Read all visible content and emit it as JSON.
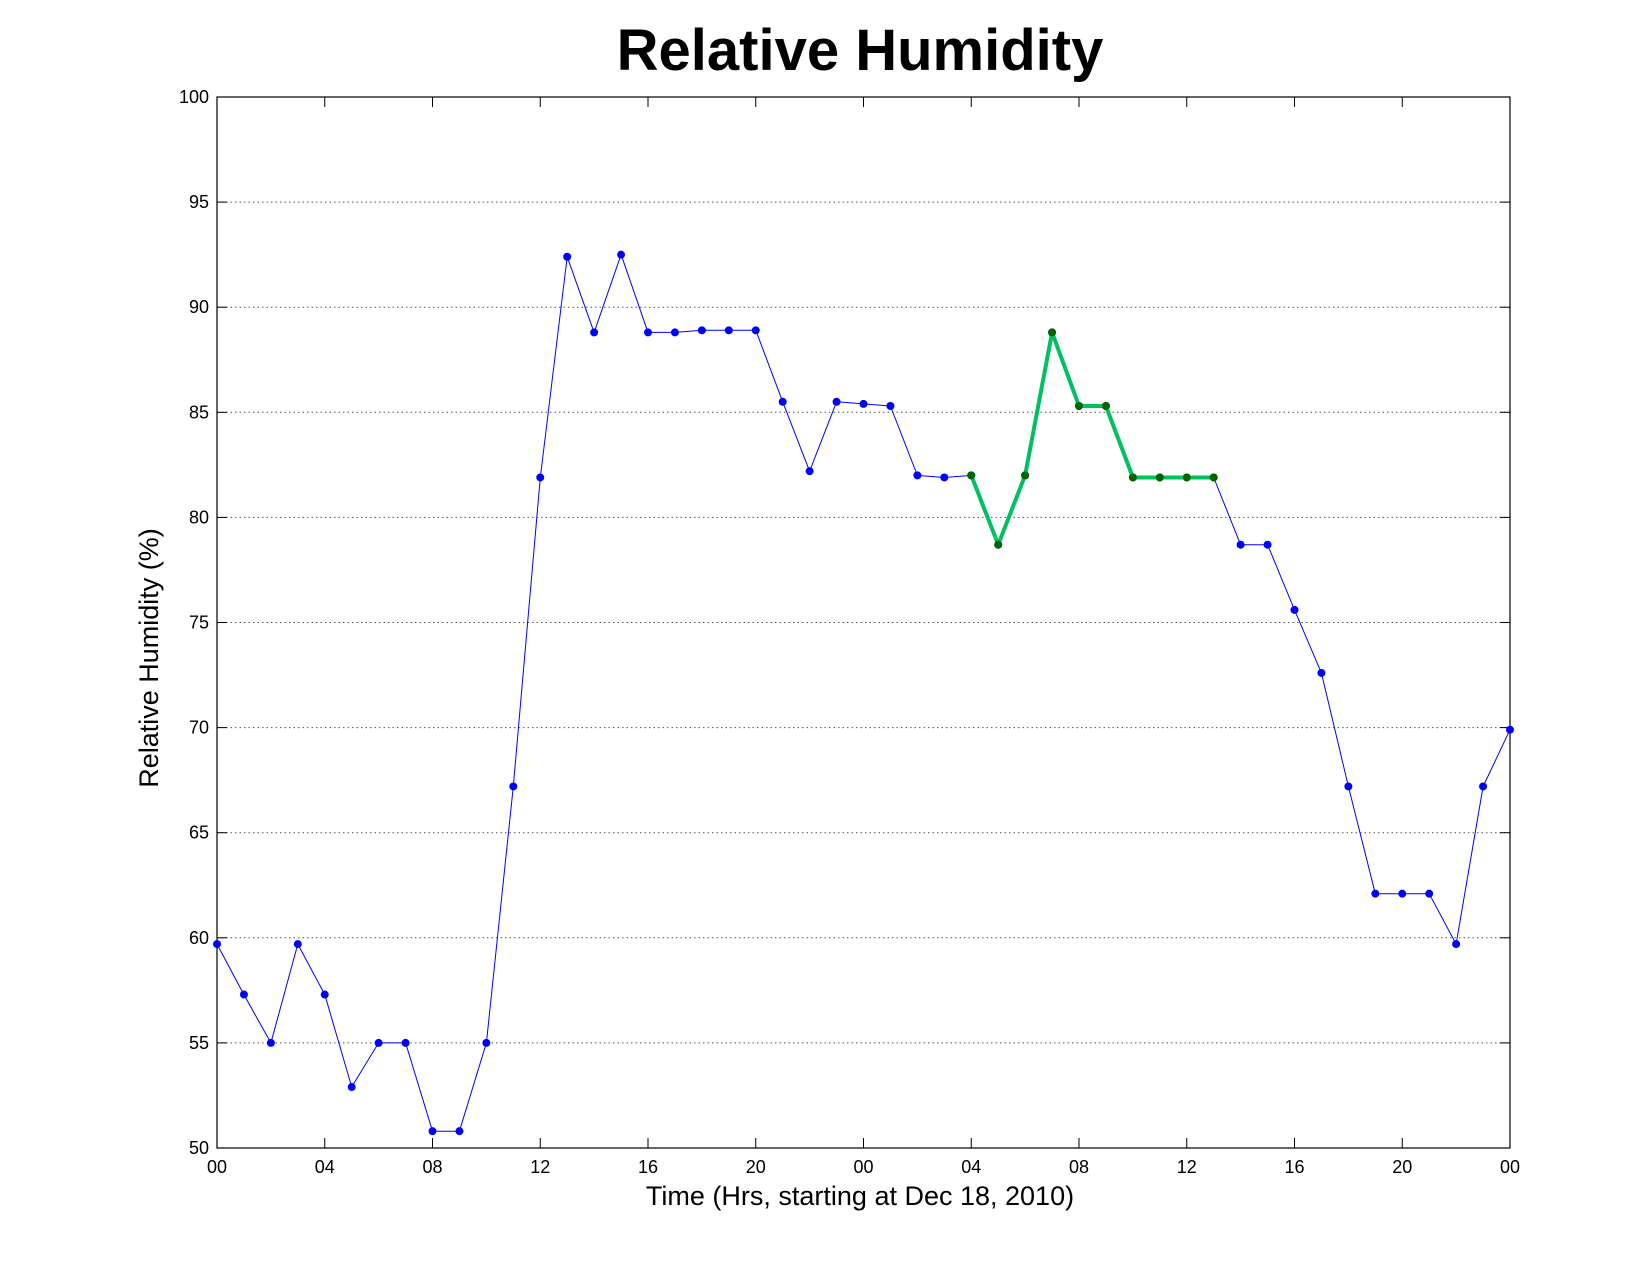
{
  "chart_data": {
    "type": "line",
    "title": "Relative Humidity",
    "xlabel": "Time (Hrs, starting at Dec 18, 2010)",
    "ylabel": "Relative Humidity (%)",
    "xlim": [
      0,
      48
    ],
    "ylim": [
      50,
      100
    ],
    "grid": "y-major-dotted",
    "x_ticks": [
      {
        "x": 0,
        "label": "00"
      },
      {
        "x": 4,
        "label": "04"
      },
      {
        "x": 8,
        "label": "08"
      },
      {
        "x": 12,
        "label": "12"
      },
      {
        "x": 16,
        "label": "16"
      },
      {
        "x": 20,
        "label": "20"
      },
      {
        "x": 24,
        "label": "00"
      },
      {
        "x": 28,
        "label": "04"
      },
      {
        "x": 32,
        "label": "08"
      },
      {
        "x": 36,
        "label": "12"
      },
      {
        "x": 40,
        "label": "16"
      },
      {
        "x": 44,
        "label": "20"
      },
      {
        "x": 48,
        "label": "00"
      }
    ],
    "y_ticks": [
      50,
      55,
      60,
      65,
      70,
      75,
      80,
      85,
      90,
      95,
      100
    ],
    "series": [
      {
        "color": "#0000ff",
        "marker_color": "#0000ff",
        "line_width": 1,
        "x": [
          0,
          1,
          2,
          3,
          4,
          5,
          6,
          7,
          8,
          9,
          10,
          11,
          12,
          13,
          14,
          15,
          16,
          17,
          18,
          19,
          20,
          21,
          22,
          23,
          24,
          25,
          26,
          27,
          28,
          29,
          30,
          31,
          32,
          33,
          34,
          35,
          36,
          37,
          38,
          39,
          40,
          41,
          42,
          43,
          44,
          45,
          46,
          47,
          48
        ],
        "y": [
          59.7,
          57.3,
          55.0,
          59.7,
          57.3,
          52.9,
          55.0,
          55.0,
          50.8,
          50.8,
          55.0,
          67.2,
          81.9,
          92.4,
          88.8,
          92.5,
          88.8,
          88.8,
          88.9,
          88.9,
          88.9,
          85.5,
          82.2,
          85.5,
          85.4,
          85.3,
          82.0,
          81.9,
          82.0,
          78.7,
          82.0,
          88.8,
          85.3,
          85.3,
          81.9,
          81.9,
          81.9,
          81.9,
          78.7,
          78.7,
          75.6,
          72.6,
          67.2,
          62.1,
          62.1,
          62.1,
          59.7,
          67.2,
          69.9
        ]
      },
      {
        "color": "#00c060",
        "marker_color": "#006400",
        "line_width": 4,
        "x": [
          28,
          29,
          30,
          31,
          32,
          33,
          34,
          35,
          36,
          37
        ],
        "y": [
          82.0,
          78.7,
          82.0,
          88.8,
          85.3,
          85.3,
          81.9,
          81.9,
          81.9,
          81.9
        ]
      }
    ]
  }
}
